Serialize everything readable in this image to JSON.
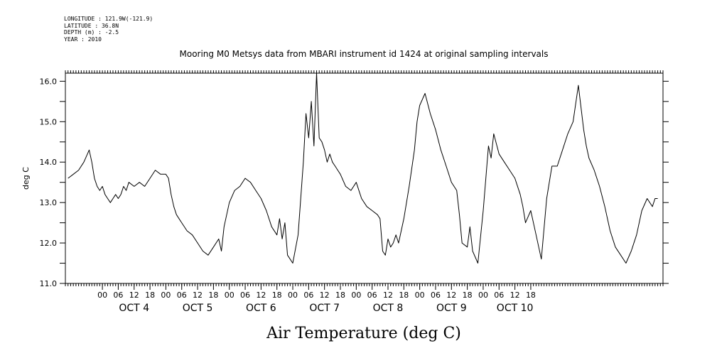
{
  "header": {
    "longitude": "LONGITUDE : 121.9W(-121.9)",
    "latitude": "LATITUDE : 36.8N",
    "depth": "DEPTH (m) : -2.5",
    "year": "YEAR : 2010"
  },
  "chart_data": {
    "type": "line",
    "title": "Mooring M0 Metsys data from MBARI instrument id 1424 at original sampling intervals",
    "xlabel": "Air Temperature (deg C)",
    "ylabel": "deg C",
    "ylim": [
      11.0,
      16.2
    ],
    "yticks": [
      11.0,
      12.0,
      13.0,
      14.0,
      15.0,
      16.0
    ],
    "ytick_labels": [
      "11.0",
      "12.0",
      "13.0",
      "14.0",
      "15.0",
      "16.0"
    ],
    "x_units": "hours since OCT 4 00",
    "xlim": [
      -14,
      212
    ],
    "xtick_labels": [
      "00",
      "06",
      "12",
      "18",
      "00",
      "06",
      "12",
      "18",
      "00",
      "06",
      "12",
      "18",
      "00",
      "06",
      "12",
      "18",
      "00",
      "06",
      "12",
      "18",
      "00",
      "06",
      "12",
      "18",
      "00",
      "06",
      "12",
      "18"
    ],
    "day_labels": [
      "OCT  4",
      "OCT  5",
      "OCT  6",
      "OCT  7",
      "OCT  8",
      "OCT  9",
      "OCT 10"
    ],
    "grid": false,
    "series": [
      {
        "color": "#000000",
        "x": [
          -13,
          -11,
          -9,
          -7,
          -5,
          -4,
          -3,
          -2,
          -1,
          0,
          1,
          2,
          3,
          4,
          5,
          6,
          7,
          8,
          9,
          10,
          12,
          14,
          16,
          18,
          20,
          22,
          24,
          25,
          26,
          27,
          28,
          30,
          32,
          34,
          36,
          38,
          40,
          42,
          44,
          45,
          46,
          48,
          50,
          52,
          54,
          56,
          58,
          60,
          62,
          64,
          66,
          67,
          68,
          69,
          70,
          71,
          72,
          74,
          76,
          77,
          78,
          79,
          80,
          81,
          82,
          83,
          84,
          85,
          86,
          87,
          88,
          89,
          90,
          92,
          94,
          96,
          98,
          100,
          102,
          104,
          105,
          106,
          107,
          108,
          109,
          110,
          111,
          112,
          114,
          116,
          118,
          119,
          120,
          122,
          124,
          126,
          128,
          130,
          132,
          134,
          135,
          136,
          138,
          139,
          140,
          142,
          144,
          146,
          147,
          148,
          150,
          152,
          154,
          156,
          158,
          159,
          160,
          162,
          164,
          166,
          168,
          170,
          172,
          174,
          176,
          178,
          180,
          182,
          183,
          184,
          186,
          188,
          190,
          192,
          194,
          196,
          198,
          200,
          202,
          204,
          206,
          208,
          209,
          210
        ],
        "y": [
          13.6,
          13.7,
          13.8,
          14.0,
          14.3,
          14.0,
          13.6,
          13.4,
          13.3,
          13.4,
          13.2,
          13.1,
          13.0,
          13.1,
          13.2,
          13.1,
          13.2,
          13.4,
          13.3,
          13.5,
          13.4,
          13.5,
          13.4,
          13.6,
          13.8,
          13.7,
          13.7,
          13.6,
          13.2,
          12.9,
          12.7,
          12.5,
          12.3,
          12.2,
          12.0,
          11.8,
          11.7,
          11.9,
          12.1,
          11.8,
          12.4,
          13.0,
          13.3,
          13.4,
          13.6,
          13.5,
          13.3,
          13.1,
          12.8,
          12.4,
          12.2,
          12.6,
          12.1,
          12.5,
          11.7,
          11.6,
          11.5,
          12.2,
          14.0,
          15.2,
          14.6,
          15.5,
          14.4,
          16.2,
          14.6,
          14.5,
          14.3,
          14.0,
          14.2,
          14.0,
          13.9,
          13.8,
          13.7,
          13.4,
          13.3,
          13.5,
          13.1,
          12.9,
          12.8,
          12.7,
          12.6,
          11.8,
          11.7,
          12.1,
          11.9,
          12.0,
          12.2,
          12.0,
          12.6,
          13.4,
          14.3,
          15.0,
          15.4,
          15.7,
          15.2,
          14.8,
          14.3,
          13.9,
          13.5,
          13.3,
          12.7,
          12.0,
          11.9,
          12.4,
          11.8,
          11.5,
          12.8,
          14.4,
          14.1,
          14.7,
          14.2,
          14.0,
          13.8,
          13.6,
          13.2,
          12.9,
          12.5,
          12.8,
          12.2,
          11.6,
          13.1,
          13.9,
          13.9,
          14.3,
          14.7,
          15.0,
          15.9,
          14.8,
          14.4,
          14.1,
          13.8,
          13.4,
          12.9,
          12.3,
          11.9,
          11.7,
          11.5,
          11.8,
          12.2,
          12.8,
          13.1,
          12.9,
          13.1,
          13.1
        ]
      }
    ]
  }
}
